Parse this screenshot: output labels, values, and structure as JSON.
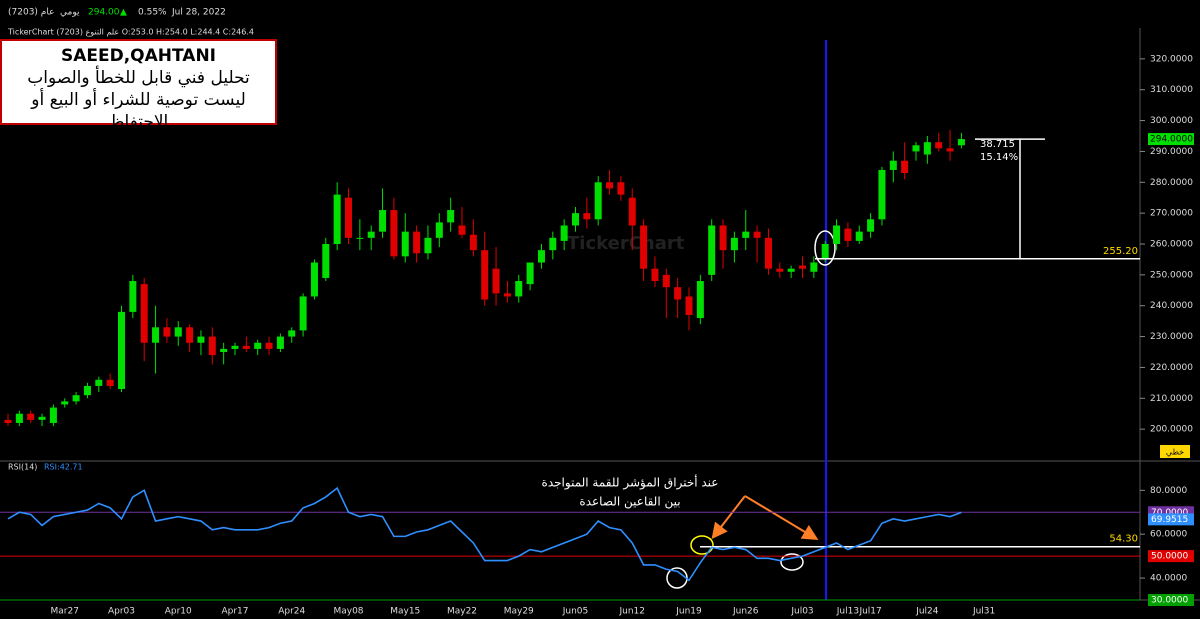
{
  "header": {
    "symbol": "عام (7203)",
    "period": "يومي",
    "price": "294.00",
    "arrow": "▲",
    "change": "0.55%",
    "date": "Jul 28, 2022",
    "info": "TickerChart علم التنوع (7203) O:253.0 H:254.0 L:244.4 C:246.4",
    "watermark": "TickerChart",
    "mode": "خطي"
  },
  "note": {
    "author": "SAEED,QAHTANI",
    "line1": "تحليل فني قابل للخطأ والصواب",
    "line2": "ليست توصية للشراء أو البيع أو الاحتفاظ"
  },
  "chart_data": [
    {
      "type": "candlestick",
      "up_color": "#00e000",
      "down_color": "#e00000",
      "categories": [
        null,
        null,
        null,
        null,
        null,
        "Mar27",
        null,
        null,
        null,
        null,
        "Apr03",
        null,
        null,
        null,
        null,
        "Apr10",
        null,
        null,
        null,
        null,
        "Apr17",
        null,
        null,
        null,
        null,
        "Apr24",
        null,
        null,
        null,
        null,
        "May08",
        null,
        null,
        null,
        null,
        "May15",
        null,
        null,
        null,
        null,
        "May22",
        null,
        null,
        null,
        null,
        "May29",
        null,
        null,
        null,
        null,
        "Jun05",
        null,
        null,
        null,
        null,
        "Jun12",
        null,
        null,
        null,
        null,
        "Jun19",
        null,
        null,
        null,
        null,
        "Jun26",
        null,
        null,
        null,
        null,
        "Jul03",
        null,
        null,
        null,
        "Jul13",
        null,
        "Jul17",
        null,
        null,
        null,
        null,
        "Jul24",
        null,
        null,
        null,
        null,
        "Jul31"
      ],
      "open": [
        203,
        202,
        205,
        203,
        202,
        208,
        209,
        211,
        214,
        216,
        213,
        238,
        247,
        228,
        233,
        230,
        233,
        228,
        230,
        225,
        226,
        227,
        226,
        228,
        226,
        230,
        232,
        243,
        249,
        260,
        275,
        262,
        262,
        264,
        271,
        256,
        264,
        257,
        262,
        267,
        266,
        263,
        258,
        252,
        244,
        243,
        247,
        254,
        258,
        261,
        266,
        270,
        268,
        280,
        280,
        275,
        266,
        252,
        250,
        246,
        243,
        236,
        250,
        266,
        258,
        262,
        264,
        262,
        252,
        251,
        253,
        251,
        255,
        260,
        265,
        261,
        264,
        268,
        284,
        287,
        290,
        289,
        293,
        291,
        292,
        null,
        null
      ],
      "high": [
        205,
        206,
        206,
        205,
        208,
        210,
        212,
        215,
        217,
        218,
        240,
        250,
        249,
        240,
        236,
        235,
        234,
        232,
        233,
        228,
        228,
        230,
        229,
        230,
        231,
        233,
        244,
        255,
        262,
        280,
        278,
        268,
        266,
        278,
        275,
        270,
        266,
        266,
        270,
        275,
        272,
        268,
        264,
        259,
        248,
        250,
        254,
        260,
        264,
        268,
        272,
        275,
        282,
        284,
        282,
        278,
        268,
        256,
        252,
        249,
        246,
        250,
        268,
        268,
        264,
        271,
        266,
        265,
        254,
        253,
        256,
        256,
        261,
        268,
        267,
        266,
        270,
        285,
        290,
        293,
        293,
        295,
        296,
        297,
        296,
        null,
        null
      ],
      "low": [
        201,
        201,
        202,
        201,
        201,
        207,
        208,
        210,
        212,
        213,
        212,
        236,
        222,
        218,
        228,
        227,
        225,
        224,
        221,
        221,
        224,
        225,
        224,
        224,
        225,
        228,
        230,
        242,
        248,
        258,
        260,
        258,
        258,
        262,
        255,
        254,
        254,
        255,
        259,
        264,
        262,
        256,
        240,
        240,
        241,
        241,
        245,
        252,
        255,
        258,
        264,
        265,
        266,
        276,
        274,
        258,
        248,
        246,
        236,
        236,
        232,
        234,
        248,
        252,
        254,
        258,
        254,
        250,
        249,
        249,
        249,
        249,
        254,
        258,
        259,
        260,
        262,
        266,
        280,
        281,
        287,
        286,
        290,
        287,
        291,
        null,
        null
      ],
      "close": [
        202,
        205,
        203,
        204,
        207,
        209,
        211,
        214,
        216,
        214,
        238,
        248,
        228,
        233,
        230,
        233,
        228,
        230,
        224,
        226,
        227,
        226,
        228,
        226,
        230,
        232,
        243,
        254,
        260,
        276,
        262,
        262,
        264,
        271,
        256,
        264,
        257,
        262,
        267,
        271,
        263,
        258,
        242,
        244,
        243,
        248,
        254,
        258,
        262,
        266,
        270,
        268,
        280,
        278,
        276,
        266,
        252,
        248,
        246,
        242,
        237,
        248,
        266,
        258,
        262,
        264,
        262,
        252,
        251,
        252,
        252,
        254,
        260,
        266,
        261,
        264,
        268,
        284,
        287,
        283,
        292,
        293,
        291,
        290,
        294,
        null,
        null
      ],
      "ylim": [
        190,
        330
      ],
      "yticks": [
        {
          "value": 200,
          "label": "200.0000"
        },
        {
          "value": 210,
          "label": "210.0000"
        },
        {
          "value": 220,
          "label": "220.0000"
        },
        {
          "value": 230,
          "label": "230.0000"
        },
        {
          "value": 240,
          "label": "240.0000"
        },
        {
          "value": 250,
          "label": "250.0000"
        },
        {
          "value": 260,
          "label": "260.0000"
        },
        {
          "value": 270,
          "label": "270.0000"
        },
        {
          "value": 280,
          "label": "280.0000"
        },
        {
          "value": 290,
          "label": "290.0000"
        },
        {
          "value": 300,
          "label": "300.0000"
        },
        {
          "value": 310,
          "label": "310.0000"
        },
        {
          "value": 320,
          "label": "320.0000"
        }
      ],
      "last_price": {
        "value": 294,
        "label": "294.0000"
      },
      "level": {
        "value": 255.2,
        "label": "255.20"
      },
      "measure_change": 38.715,
      "measure_percent": {
        "value": 15.14,
        "label": "15.14%"
      }
    },
    {
      "type": "line",
      "title": "RSI(14)",
      "readout": "RSI:42.71",
      "color": "#2f8fff",
      "values": [
        67,
        70,
        69,
        64,
        68,
        69,
        70,
        71,
        74,
        72,
        67,
        77,
        80,
        66,
        67,
        68,
        67,
        66,
        62,
        63,
        62,
        62,
        62,
        63,
        65,
        66,
        72,
        74,
        77,
        81,
        70,
        68,
        69,
        68,
        59,
        59,
        61,
        62,
        64,
        66,
        61,
        56,
        48,
        48,
        48,
        50,
        53,
        52,
        54,
        56,
        58,
        60,
        66,
        63,
        62,
        56,
        46,
        46,
        44,
        43,
        39,
        47,
        54,
        53,
        54,
        53,
        49,
        49,
        48,
        49,
        50,
        52,
        54,
        56,
        53,
        55,
        57,
        65,
        67,
        66,
        67,
        68,
        69,
        68,
        69.9515,
        null,
        null
      ],
      "last_value": {
        "value": 69.9515,
        "label": "69.9515"
      },
      "ylim": [
        30,
        92
      ],
      "yticks": [
        {
          "value": 80,
          "label": "80.0000"
        },
        {
          "value": 60,
          "label": "60.0000"
        },
        {
          "value": 40,
          "label": "40.0000"
        }
      ],
      "levels": [
        {
          "value": 70,
          "label": "70.0000",
          "color": "#7030a0"
        },
        {
          "value": 50,
          "label": "50.0000",
          "color": "#e00000"
        },
        {
          "value": 30,
          "label": "30.0000",
          "color": "#00a000"
        }
      ],
      "breakout": {
        "value": 54.3,
        "label": "54.30"
      },
      "annotation": [
        "عند أختراق المؤشر للقمة المتواجدة",
        "بين القاعين الصاعدة"
      ]
    }
  ]
}
